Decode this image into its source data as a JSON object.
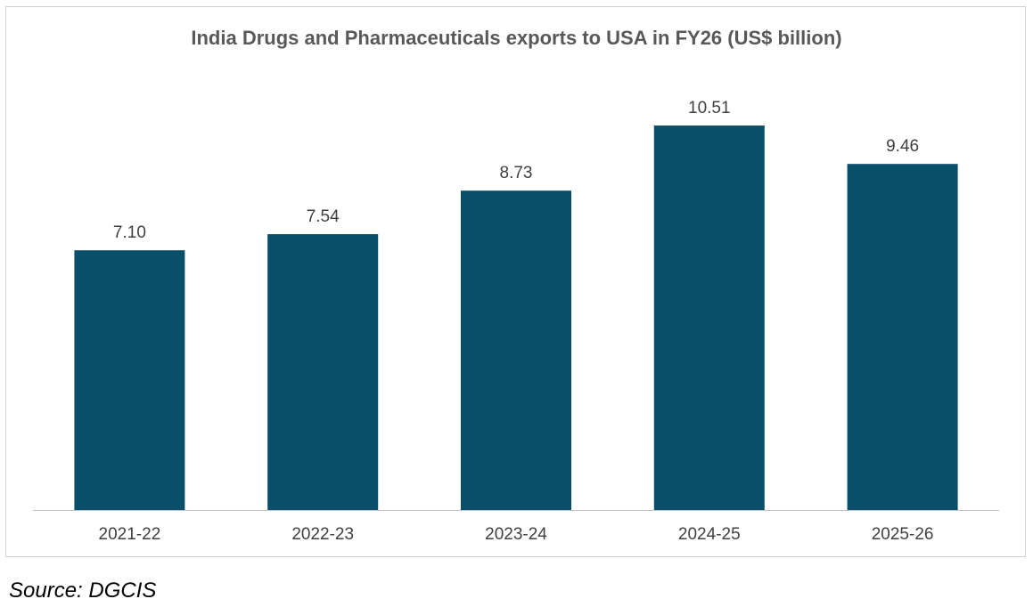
{
  "chart_data": {
    "type": "bar",
    "title": "India Drugs and Pharmaceuticals exports to USA in FY26 (US$ billion)",
    "categories": [
      "2021-22",
      "2022-23",
      "2023-24",
      "2024-25",
      "2025-26"
    ],
    "values": [
      7.1,
      7.54,
      8.73,
      10.51,
      9.46
    ],
    "data_labels": [
      "7.10",
      "7.54",
      "8.73",
      "10.51",
      "9.46"
    ],
    "xlabel": "",
    "ylabel": "",
    "ylim": [
      0,
      12.5
    ],
    "grid": false,
    "legend": "none",
    "bar_color": "#0a4f69"
  },
  "source": "Source: DGCIS"
}
